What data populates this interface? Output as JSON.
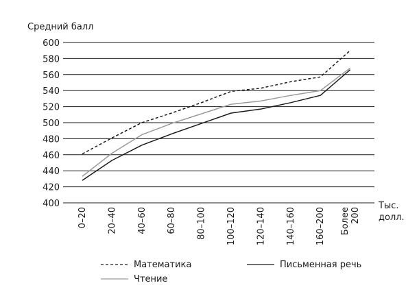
{
  "chart_data": {
    "type": "line",
    "ylabel": "Средний балл",
    "xlabel_lines": [
      "Тыс.",
      "долл."
    ],
    "ylim": [
      400,
      600
    ],
    "yticks": [
      400,
      420,
      440,
      460,
      480,
      500,
      520,
      540,
      560,
      580,
      600
    ],
    "grid": true,
    "categories": [
      {
        "lines": [
          "0–20"
        ]
      },
      {
        "lines": [
          "20–40"
        ]
      },
      {
        "lines": [
          "40–60"
        ]
      },
      {
        "lines": [
          "60–80"
        ]
      },
      {
        "lines": [
          "80–100"
        ]
      },
      {
        "lines": [
          "100–120"
        ]
      },
      {
        "lines": [
          "120–140"
        ]
      },
      {
        "lines": [
          "140–160"
        ]
      },
      {
        "lines": [
          "160–200"
        ]
      },
      {
        "lines": [
          "Более",
          "200"
        ]
      }
    ],
    "series": [
      {
        "name": "Математика",
        "style": "dashed",
        "color": "#1a1a1a",
        "values": [
          461,
          481,
          500,
          512,
          525,
          539,
          543,
          551,
          557,
          590
        ]
      },
      {
        "name": "Чтение",
        "style": "solid",
        "color": "#9a9a9a",
        "values": [
          433,
          462,
          485,
          499,
          511,
          523,
          527,
          534,
          540,
          568
        ]
      },
      {
        "name": "Письменная речь",
        "style": "solid",
        "color": "#1a1a1a",
        "values": [
          428,
          453,
          472,
          486,
          499,
          512,
          517,
          525,
          534,
          566
        ]
      }
    ],
    "legend_placement": "bottom"
  }
}
